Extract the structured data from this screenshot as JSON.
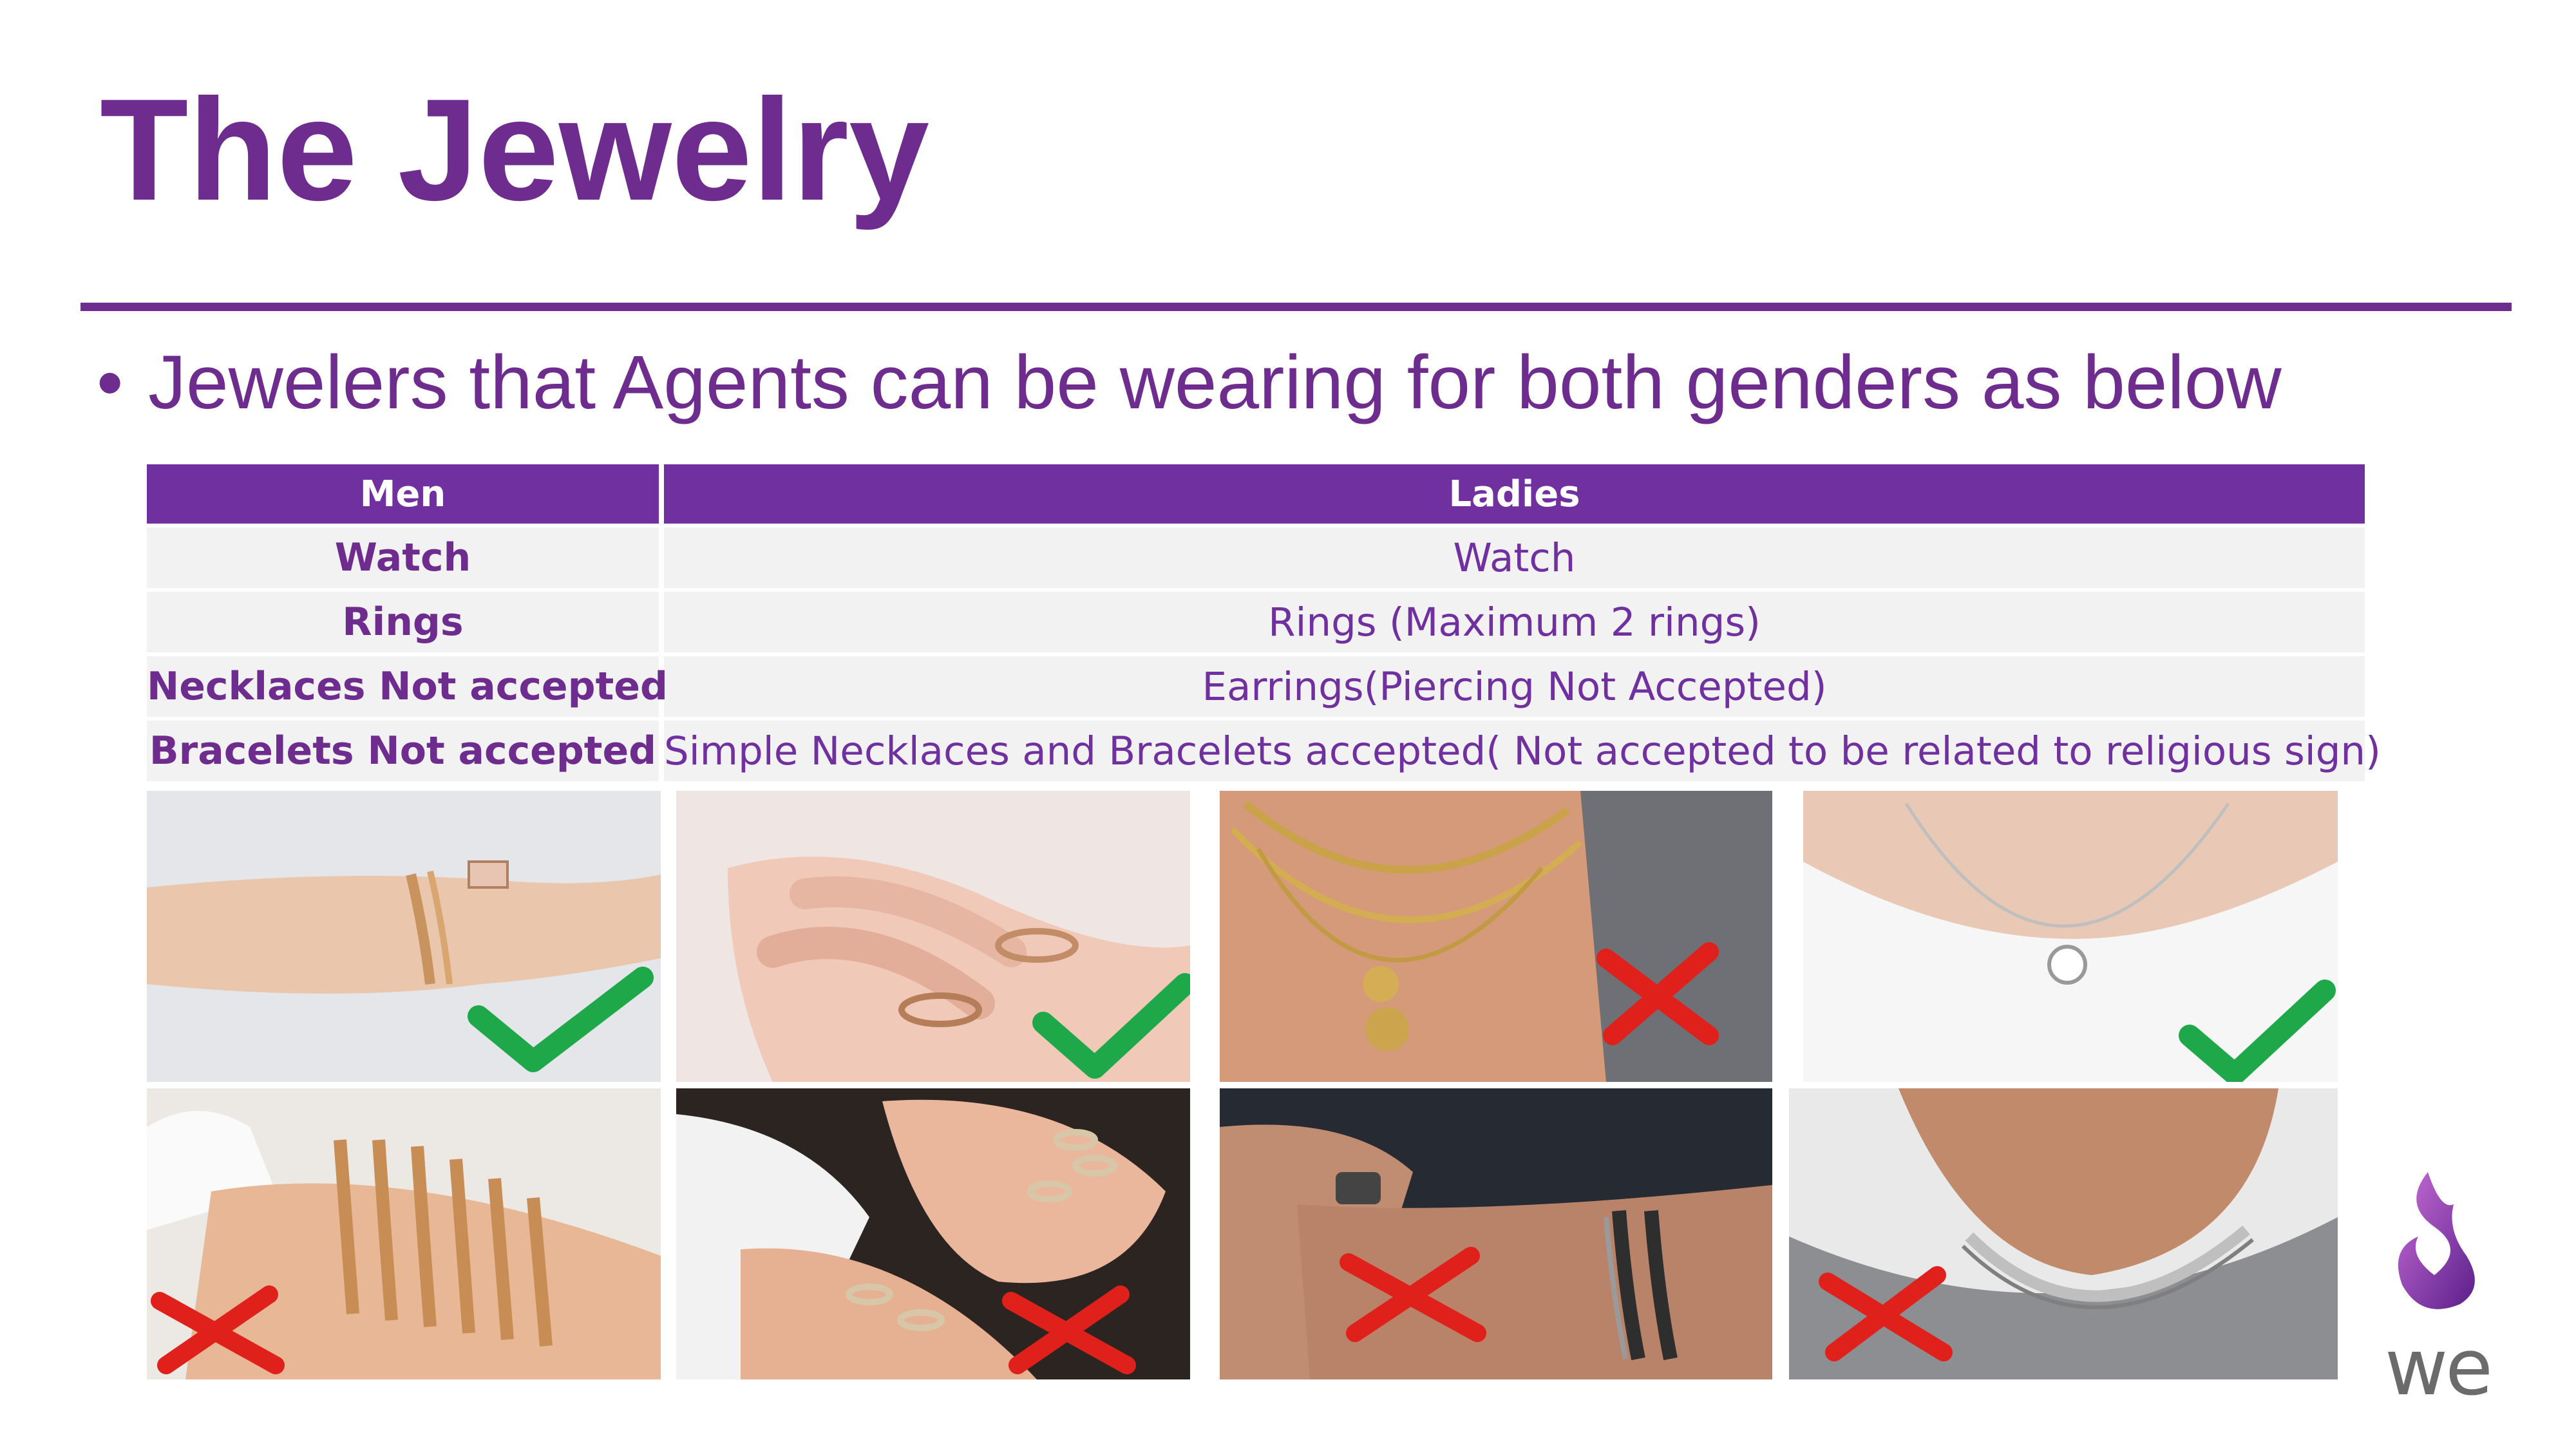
{
  "slide": {
    "title": "The Jewelry",
    "bullet": "Jewelers that Agents can be wearing for both genders as below"
  },
  "table": {
    "headers": [
      "Men",
      "Ladies"
    ],
    "rows": [
      {
        "men": "Watch",
        "ladies": "Watch"
      },
      {
        "men": "Rings",
        "ladies": "Rings (Maximum 2 rings)"
      },
      {
        "men": "Necklaces Not accepted",
        "ladies": "Earrings(Piercing Not Accepted)"
      },
      {
        "men": "Bracelets Not accepted",
        "ladies": "Simple Necklaces and Bracelets accepted( Not accepted to be related to religious sign)"
      }
    ]
  },
  "photos": [
    {
      "subject": "thin bracelet on wrist",
      "mark": "check-icon"
    },
    {
      "subject": "two thin rings on hand",
      "mark": "check-icon"
    },
    {
      "subject": "layered gold necklaces",
      "mark": "cross-icon"
    },
    {
      "subject": "simple pendant necklace",
      "mark": "check-icon"
    },
    {
      "subject": "stacked gold bangles",
      "mark": "cross-icon"
    },
    {
      "subject": "many stacked rings",
      "mark": "cross-icon"
    },
    {
      "subject": "man wearing ring and bracelet",
      "mark": "cross-icon"
    },
    {
      "subject": "man wearing chain necklace",
      "mark": "cross-icon"
    }
  ],
  "colors": {
    "brand_purple": "#6E2C8E",
    "header_purple": "#7030A0",
    "check_green": "#1FA84A",
    "cross_red": "#E0201B"
  },
  "logo": {
    "text": "we"
  }
}
